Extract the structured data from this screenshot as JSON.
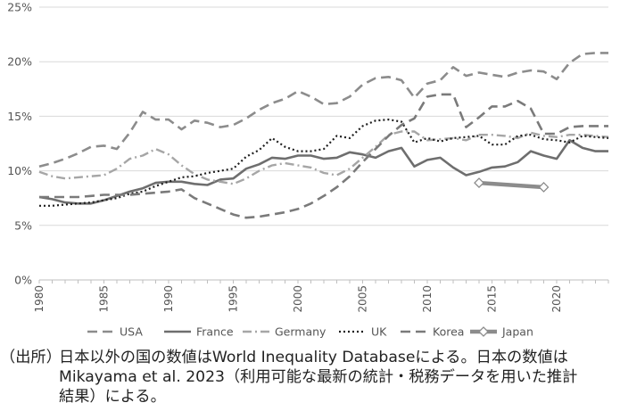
{
  "chart_data": {
    "type": "line",
    "title": "",
    "xlabel": "",
    "ylabel": "",
    "xlim": [
      1980,
      2024
    ],
    "ylim": [
      0,
      25
    ],
    "grid": true,
    "legend_position": "bottom",
    "x_ticks": [
      "1980",
      "1985",
      "1990",
      "1995",
      "2000",
      "2005",
      "2010",
      "2015",
      "2020"
    ],
    "y_ticks": [
      "0%",
      "5%",
      "10%",
      "15%",
      "20%",
      "25%"
    ],
    "series": [
      {
        "name": "USA",
        "style": "dash",
        "x": [
          1980,
          1981,
          1982,
          1983,
          1984,
          1985,
          1986,
          1987,
          1988,
          1989,
          1990,
          1991,
          1992,
          1993,
          1994,
          1995,
          1996,
          1997,
          1998,
          1999,
          2000,
          2001,
          2002,
          2003,
          2004,
          2005,
          2006,
          2007,
          2008,
          2009,
          2010,
          2011,
          2012,
          2013,
          2014,
          2015,
          2016,
          2017,
          2018,
          2019,
          2020,
          2021,
          2022,
          2023,
          2024
        ],
        "y": [
          10.4,
          10.7,
          11.1,
          11.6,
          12.2,
          12.3,
          12.0,
          13.5,
          15.4,
          14.7,
          14.7,
          13.8,
          14.6,
          14.4,
          14.0,
          14.2,
          14.8,
          15.6,
          16.2,
          16.6,
          17.3,
          16.8,
          16.1,
          16.2,
          16.8,
          17.9,
          18.5,
          18.6,
          18.3,
          16.7,
          18.0,
          18.3,
          19.5,
          18.7,
          19.0,
          18.8,
          18.6,
          19.0,
          19.2,
          19.1,
          18.4,
          19.9,
          20.7,
          20.8,
          20.8
        ]
      },
      {
        "name": "France",
        "style": "solid",
        "x": [
          1980,
          1981,
          1982,
          1983,
          1984,
          1985,
          1986,
          1987,
          1988,
          1989,
          1990,
          1991,
          1992,
          1993,
          1994,
          1995,
          1996,
          1997,
          1998,
          1999,
          2000,
          2001,
          2002,
          2003,
          2004,
          2005,
          2006,
          2007,
          2008,
          2009,
          2010,
          2011,
          2012,
          2013,
          2014,
          2015,
          2016,
          2017,
          2018,
          2019,
          2020,
          2021,
          2022,
          2023,
          2024
        ],
        "y": [
          7.6,
          7.4,
          7.1,
          7.0,
          7.0,
          7.3,
          7.7,
          8.1,
          8.4,
          8.9,
          9.0,
          9.0,
          8.8,
          8.7,
          9.2,
          9.3,
          10.2,
          10.6,
          11.2,
          11.1,
          11.4,
          11.4,
          11.1,
          11.2,
          11.7,
          11.5,
          11.2,
          11.8,
          12.1,
          10.4,
          11.0,
          11.2,
          10.3,
          9.6,
          9.9,
          10.3,
          10.4,
          10.8,
          11.8,
          11.4,
          11.1,
          12.8,
          12.1,
          11.8,
          11.8
        ]
      },
      {
        "name": "Germany",
        "style": "dashdot",
        "x": [
          1980,
          1981,
          1982,
          1983,
          1984,
          1985,
          1986,
          1987,
          1988,
          1989,
          1990,
          1991,
          1992,
          1993,
          1994,
          1995,
          1996,
          1997,
          1998,
          1999,
          2000,
          2001,
          2002,
          2003,
          2004,
          2005,
          2006,
          2007,
          2008,
          2009,
          2010,
          2011,
          2012,
          2013,
          2014,
          2015,
          2016,
          2017,
          2018,
          2019,
          2020,
          2021,
          2022,
          2023,
          2024
        ],
        "y": [
          9.9,
          9.5,
          9.3,
          9.4,
          9.5,
          9.6,
          10.2,
          11.1,
          11.4,
          12.0,
          11.5,
          10.5,
          9.7,
          9.2,
          9.0,
          8.8,
          9.3,
          10.0,
          10.5,
          10.7,
          10.5,
          10.3,
          9.8,
          9.6,
          10.2,
          11.2,
          12.2,
          13.3,
          13.6,
          13.6,
          12.8,
          12.9,
          13.0,
          12.8,
          13.3,
          13.3,
          13.2,
          13.0,
          13.5,
          13.2,
          13.1,
          13.3,
          13.3,
          13.2,
          13.1
        ]
      },
      {
        "name": "UK",
        "style": "dot",
        "x": [
          1980,
          1981,
          1982,
          1983,
          1984,
          1985,
          1986,
          1987,
          1988,
          1989,
          1990,
          1991,
          1992,
          1993,
          1994,
          1995,
          1996,
          1997,
          1998,
          1999,
          2000,
          2001,
          2002,
          2003,
          2004,
          2005,
          2006,
          2007,
          2008,
          2009,
          2010,
          2011,
          2012,
          2013,
          2014,
          2015,
          2016,
          2017,
          2018,
          2019,
          2020,
          2021,
          2022,
          2023,
          2024
        ],
        "y": [
          6.8,
          6.8,
          6.9,
          7.0,
          7.1,
          7.3,
          7.5,
          7.9,
          8.1,
          8.6,
          9.0,
          9.4,
          9.5,
          9.8,
          10.0,
          10.2,
          11.3,
          11.9,
          13.0,
          12.2,
          11.8,
          11.8,
          12.0,
          13.2,
          13.0,
          14.1,
          14.6,
          14.7,
          14.5,
          12.6,
          13.0,
          12.7,
          13.0,
          13.1,
          13.2,
          12.4,
          12.4,
          13.2,
          13.3,
          12.9,
          12.8,
          12.6,
          13.2,
          13.1,
          13.0
        ]
      },
      {
        "name": "Korea",
        "style": "dash",
        "x": [
          1980,
          1981,
          1982,
          1983,
          1984,
          1985,
          1986,
          1987,
          1988,
          1989,
          1990,
          1991,
          1992,
          1993,
          1994,
          1995,
          1996,
          1997,
          1998,
          1999,
          2000,
          2001,
          2002,
          2003,
          2004,
          2005,
          2006,
          2007,
          2008,
          2009,
          2010,
          2011,
          2012,
          2013,
          2014,
          2015,
          2016,
          2017,
          2018,
          2019,
          2020,
          2021,
          2022,
          2023,
          2024
        ],
        "y": [
          7.6,
          7.6,
          7.6,
          7.6,
          7.7,
          7.8,
          7.8,
          7.8,
          7.9,
          8.0,
          8.1,
          8.3,
          7.5,
          7.0,
          6.5,
          6.0,
          5.7,
          5.8,
          6.0,
          6.2,
          6.5,
          7.0,
          7.7,
          8.5,
          9.5,
          10.8,
          12.0,
          13.2,
          14.2,
          14.8,
          16.8,
          17.0,
          17.0,
          14.0,
          14.9,
          15.9,
          15.9,
          16.4,
          15.7,
          13.4,
          13.4,
          14.0,
          14.1,
          14.1,
          14.1
        ]
      },
      {
        "name": "Japan",
        "style": "solid-thick-marker",
        "x": [
          2014,
          2019
        ],
        "y": [
          8.9,
          8.5
        ]
      }
    ]
  },
  "note": {
    "label": "（出所）",
    "line1": "日本以外の国の数値はWorld Inequality Databaseによる。日本の数値は",
    "line2": "Mikayama et al. 2023（利用可能な最新の統計・税務データを用いた推計",
    "line3": "結果）による。"
  }
}
